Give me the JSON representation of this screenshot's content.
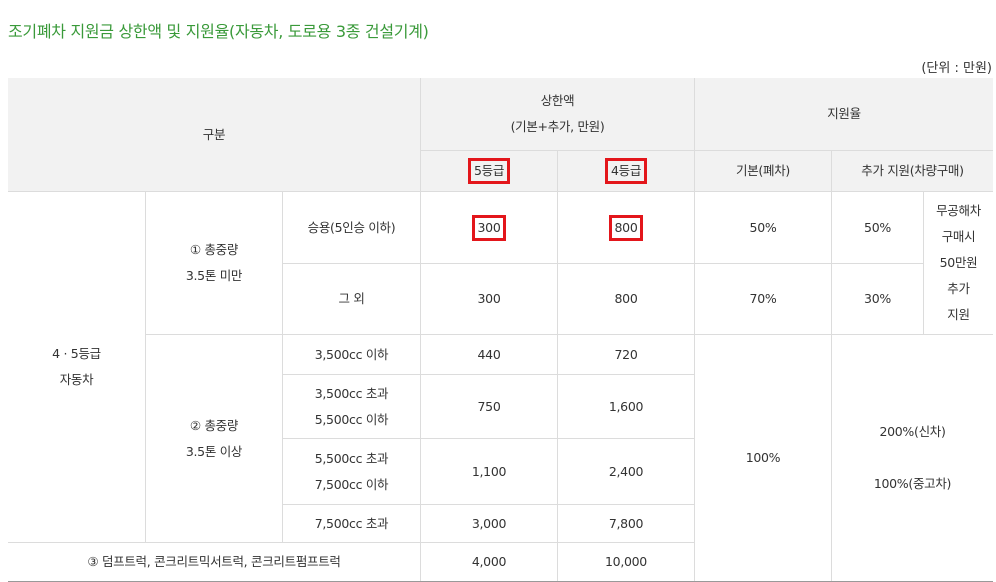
{
  "title": "조기폐차 지원금 상한액 및 지원율(자동차, 도로용 3종 건설기계)",
  "unit": "(단위 : 만원)",
  "header": {
    "category": "구분",
    "limit_title": "상한액",
    "limit_sub": "(기본+추가, 만원)",
    "rate": "지원율",
    "grade5": "5등급",
    "grade4": "4등급",
    "basic": "기본(폐차)",
    "extra": "추가 지원(차량구매)"
  },
  "group": {
    "line1": "4 · 5등급",
    "line2": "자동차"
  },
  "sub1": {
    "line1": "① 총중량",
    "line2": "3.5톤 미만"
  },
  "sub2": {
    "line1": "② 총중량",
    "line2": "3.5톤 이상"
  },
  "rows": {
    "passenger": {
      "label": "승용(5인승 이하)",
      "g5": "300",
      "g4": "800",
      "basic": "50%",
      "extra": "50%"
    },
    "other": {
      "label": "그 외",
      "g5": "300",
      "g4": "800",
      "basic": "70%",
      "extra": "30%"
    },
    "r3500": {
      "label": "3,500cc 이하",
      "g5": "440",
      "g4": "720"
    },
    "r3500_5500": {
      "label1": "3,500cc 초과",
      "label2": "5,500cc 이하",
      "g5": "750",
      "g4": "1,600"
    },
    "r5500_7500": {
      "label1": "5,500cc 초과",
      "label2": "7,500cc 이하",
      "g5": "1,100",
      "g4": "2,400"
    },
    "r7500": {
      "label": "7,500cc 초과",
      "g5": "3,000",
      "g4": "7,800"
    },
    "dump": {
      "label": "③ 덤프트럭, 콘크리트믹서트럭, 콘크리트펌프트럭",
      "g5": "4,000",
      "g4": "10,000"
    }
  },
  "note": {
    "l1": "무공해차",
    "l2": "구매시",
    "l3": "50만원",
    "l4": "추가",
    "l5": "지원"
  },
  "rate100": "100%",
  "extra_new": "200%(신차)",
  "extra_used": "100%(중고차)"
}
